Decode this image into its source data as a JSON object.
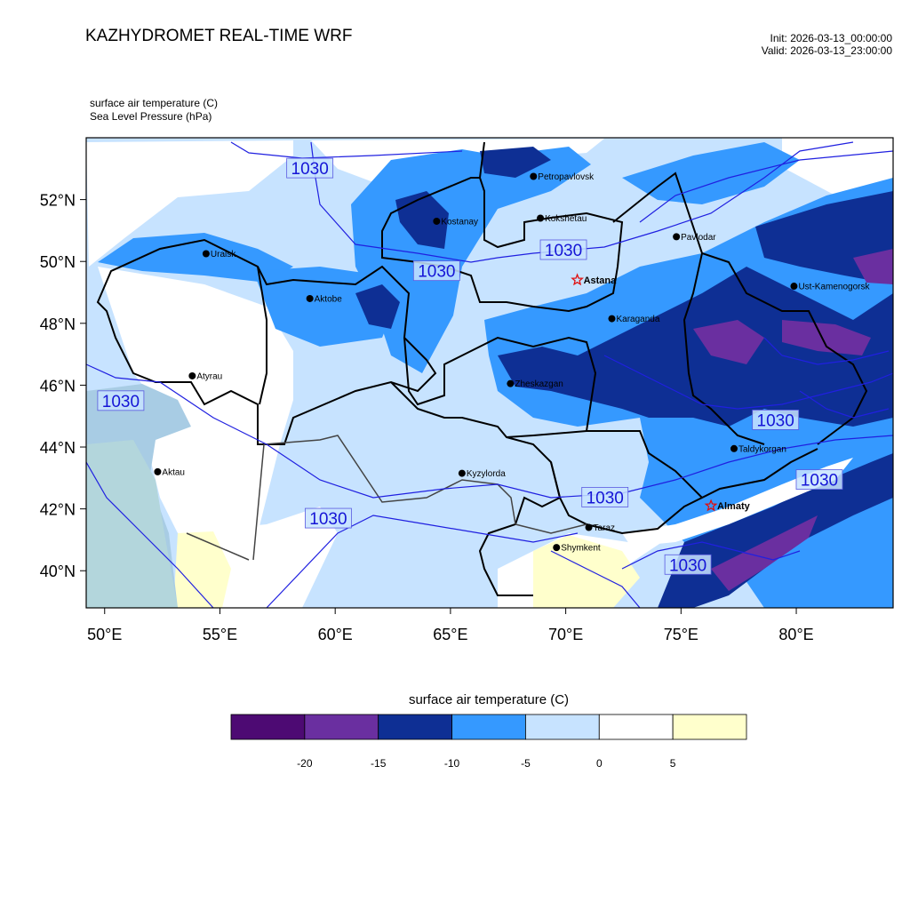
{
  "header": {
    "title": "KAZHYDROMET REAL-TIME WRF",
    "init": "Init: 2026-03-13_00:00:00",
    "valid": "Valid: 2026-03-13_23:00:00",
    "var1": "surface air temperature   (C)",
    "var2": "Sea Level Pressure   (hPa)"
  },
  "map": {
    "lon_range": [
      49.2,
      84.2
    ],
    "lat_range": [
      38.8,
      54.0
    ],
    "lon_ticks": [
      {
        "value": 50,
        "label": "50°E"
      },
      {
        "value": 55,
        "label": "55°E"
      },
      {
        "value": 60,
        "label": "60°E"
      },
      {
        "value": 65,
        "label": "65°E"
      },
      {
        "value": 70,
        "label": "70°E"
      },
      {
        "value": 75,
        "label": "75°E"
      },
      {
        "value": 80,
        "label": "80°E"
      }
    ],
    "lat_ticks": [
      {
        "value": 52,
        "label": "52°N"
      },
      {
        "value": 50,
        "label": "50°N"
      },
      {
        "value": 48,
        "label": "48°N"
      },
      {
        "value": 46,
        "label": "46°N"
      },
      {
        "value": 44,
        "label": "44°N"
      },
      {
        "value": 42,
        "label": "42°N"
      },
      {
        "value": 40,
        "label": "40°N"
      }
    ],
    "cities": [
      {
        "name": "Petropavlovsk",
        "lon": 68.6,
        "lat": 52.75,
        "type": "city"
      },
      {
        "name": "Kostanay",
        "lon": 64.4,
        "lat": 51.3,
        "type": "city"
      },
      {
        "name": "Kokshetau",
        "lon": 68.9,
        "lat": 51.4,
        "type": "city"
      },
      {
        "name": "Uralsk",
        "lon": 54.4,
        "lat": 50.25,
        "type": "city"
      },
      {
        "name": "Pavlodar",
        "lon": 74.8,
        "lat": 50.8,
        "type": "city"
      },
      {
        "name": "Astana",
        "lon": 70.5,
        "lat": 49.4,
        "type": "capital"
      },
      {
        "name": "Aktobe",
        "lon": 58.9,
        "lat": 48.8,
        "type": "city"
      },
      {
        "name": "Ust-Kamenogorsk",
        "lon": 79.9,
        "lat": 49.2,
        "type": "city"
      },
      {
        "name": "Karaganda",
        "lon": 72.0,
        "lat": 48.15,
        "type": "city"
      },
      {
        "name": "Atyrau",
        "lon": 53.8,
        "lat": 46.3,
        "type": "city"
      },
      {
        "name": "Zheskazgan",
        "lon": 67.6,
        "lat": 46.05,
        "type": "city"
      },
      {
        "name": "Taldykorgan",
        "lon": 77.3,
        "lat": 43.95,
        "type": "city"
      },
      {
        "name": "Aktau",
        "lon": 52.3,
        "lat": 43.2,
        "type": "city"
      },
      {
        "name": "Kyzylorda",
        "lon": 65.5,
        "lat": 43.15,
        "type": "city"
      },
      {
        "name": "Almaty",
        "lon": 76.3,
        "lat": 42.1,
        "type": "capital"
      },
      {
        "name": "Taraz",
        "lon": 71.0,
        "lat": 41.4,
        "type": "city"
      },
      {
        "name": "Shymkent",
        "lon": 69.6,
        "lat": 40.75,
        "type": "city"
      }
    ],
    "isobar_labels": [
      {
        "text": "1030",
        "lon": 58.9,
        "lat": 53.02
      },
      {
        "text": "1030",
        "lon": 69.9,
        "lat": 50.38
      },
      {
        "text": "1030",
        "lon": 64.4,
        "lat": 49.7
      },
      {
        "text": "1030",
        "lon": 50.7,
        "lat": 45.5
      },
      {
        "text": "1030",
        "lon": 79.1,
        "lat": 44.88
      },
      {
        "text": "1030",
        "lon": 81.0,
        "lat": 42.95
      },
      {
        "text": "1030",
        "lon": 71.7,
        "lat": 42.38
      },
      {
        "text": "1030",
        "lon": 59.7,
        "lat": 41.7
      },
      {
        "text": "1030",
        "lon": 75.3,
        "lat": 40.2
      }
    ]
  },
  "colorbar": {
    "title": "surface air temperature (C)",
    "colors": [
      "#4d0a73",
      "#6a2fa0",
      "#0e2f94",
      "#3599ff",
      "#c7e3ff",
      "#ffffff",
      "#ffffcc"
    ],
    "tick_labels": [
      "-20",
      "-15",
      "-10",
      "-5",
      "0",
      "5"
    ]
  }
}
